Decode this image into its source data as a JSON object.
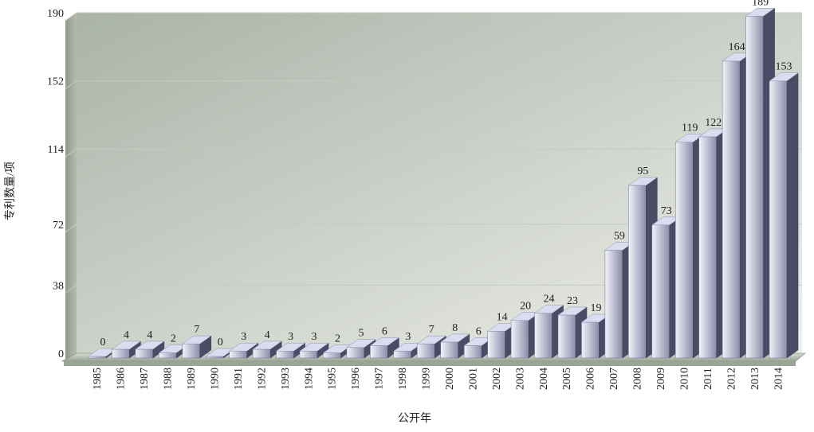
{
  "chart_data": {
    "type": "bar",
    "style": "3d-column",
    "xlabel": "公开年",
    "ylabel": "专利数量/项",
    "ylim": [
      0,
      190
    ],
    "yticks": [
      0,
      38,
      72,
      114,
      152,
      190
    ],
    "categories": [
      "1985",
      "1986",
      "1987",
      "1988",
      "1989",
      "1990",
      "1991",
      "1992",
      "1993",
      "1994",
      "1995",
      "1996",
      "1997",
      "1998",
      "1999",
      "2000",
      "2001",
      "2002",
      "2003",
      "2004",
      "2005",
      "2006",
      "2007",
      "2008",
      "2009",
      "2010",
      "2011",
      "2012",
      "2013",
      "2014"
    ],
    "values": [
      0,
      4,
      4,
      2,
      7,
      0,
      3,
      4,
      3,
      3,
      2,
      5,
      6,
      3,
      7,
      8,
      6,
      14,
      20,
      24,
      23,
      19,
      59,
      95,
      73,
      119,
      122,
      164,
      189,
      153
    ],
    "grid": true,
    "legend": "none",
    "colors": {
      "plot_bg_start": "#aab3a8",
      "plot_bg_end": "#eef0ea",
      "bar_front_light": "#f2f2fb",
      "bar_front_dark": "#8b8ca8",
      "bar_side": "#4a4c66",
      "bar_top": "#dcdcf0",
      "floor": "#b9c2b4",
      "grid": "#c4cbbf"
    }
  }
}
